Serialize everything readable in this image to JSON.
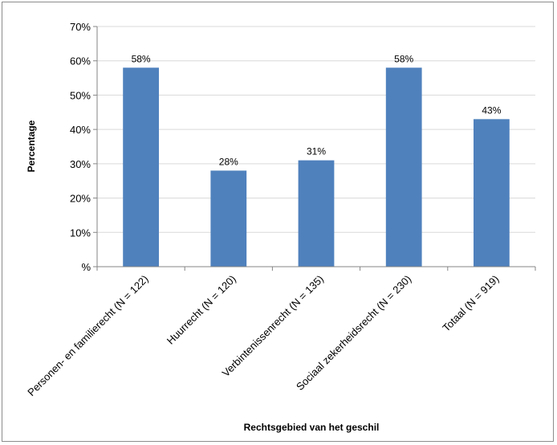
{
  "chart_data": {
    "type": "bar",
    "title": "",
    "xlabel": "Rechtsgebied van het geschil",
    "ylabel": "Percentage",
    "categories": [
      "Personen- en familierecht (N = 122)",
      "Huurrecht (N = 120)",
      "Verbintenissenrecht (N = 135)",
      "Sociaal zekerheidsrecht (N = 230)",
      "Totaal (N = 919)"
    ],
    "values": [
      58,
      28,
      31,
      58,
      43
    ],
    "value_labels": [
      "58%",
      "28%",
      "31%",
      "58%",
      "43%"
    ],
    "ylim": [
      0,
      70
    ],
    "yticks": [
      0,
      10,
      20,
      30,
      40,
      50,
      60,
      70
    ],
    "ytick_labels": [
      "%",
      "10%",
      "20%",
      "30%",
      "40%",
      "50%",
      "60%",
      "70%"
    ],
    "grid": true,
    "legend": "none",
    "colors": {
      "bar": "#4f81bd",
      "grid": "#d9d9d9",
      "axis": "#868686"
    }
  }
}
